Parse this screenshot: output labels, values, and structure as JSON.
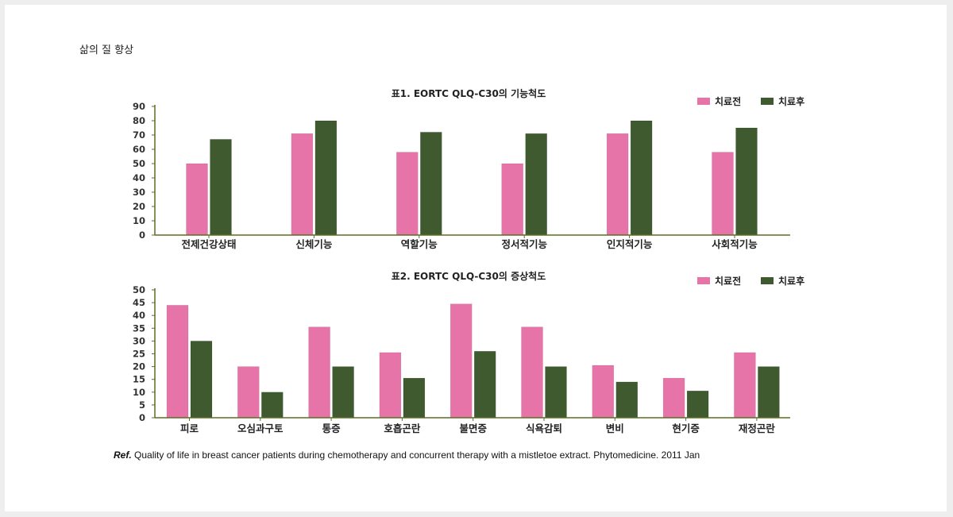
{
  "page": {
    "heading": "삶의 질 향상"
  },
  "colors": {
    "before": "#e774a8",
    "after": "#3f5a2e",
    "axis": "#5b6e23"
  },
  "chart_data": [
    {
      "type": "bar",
      "title": "표1. EORTC QLQ-C30의 기능척도",
      "categories": [
        "전제건강상태",
        "신체기능",
        "역할기능",
        "정서적기능",
        "인지적기능",
        "사회적기능"
      ],
      "series": [
        {
          "name": "치료전",
          "values": [
            50,
            71,
            58,
            50,
            71,
            58
          ]
        },
        {
          "name": "치료후",
          "values": [
            67,
            80,
            72,
            71,
            80,
            75
          ]
        }
      ],
      "ylim": [
        0,
        90
      ],
      "yticks": [
        0,
        10,
        20,
        30,
        40,
        50,
        60,
        70,
        80,
        90
      ],
      "legend": "top-right",
      "grid": false
    },
    {
      "type": "bar",
      "title": "표2. EORTC QLQ-C30의 증상척도",
      "categories": [
        "피로",
        "오심과구토",
        "통증",
        "호흡곤란",
        "불면증",
        "식욕감퇴",
        "변비",
        "현기증",
        "재정곤란"
      ],
      "series": [
        {
          "name": "치료전",
          "values": [
            44,
            20,
            35.5,
            25.5,
            44.5,
            35.5,
            20.5,
            15.5,
            25.5
          ]
        },
        {
          "name": "치료후",
          "values": [
            30,
            10,
            20,
            15.5,
            26,
            20,
            14,
            10.5,
            20
          ]
        }
      ],
      "ylim": [
        0,
        50
      ],
      "yticks": [
        0,
        5,
        10,
        15,
        20,
        25,
        30,
        35,
        40,
        45,
        50
      ],
      "legend": "top-right",
      "grid": false
    }
  ],
  "reference": {
    "prefix": "Ref.",
    "text": " Quality of life in breast cancer patients during chemotherapy and concurrent therapy with a mistletoe extract. Phytomedicine. 2011 Jan"
  }
}
